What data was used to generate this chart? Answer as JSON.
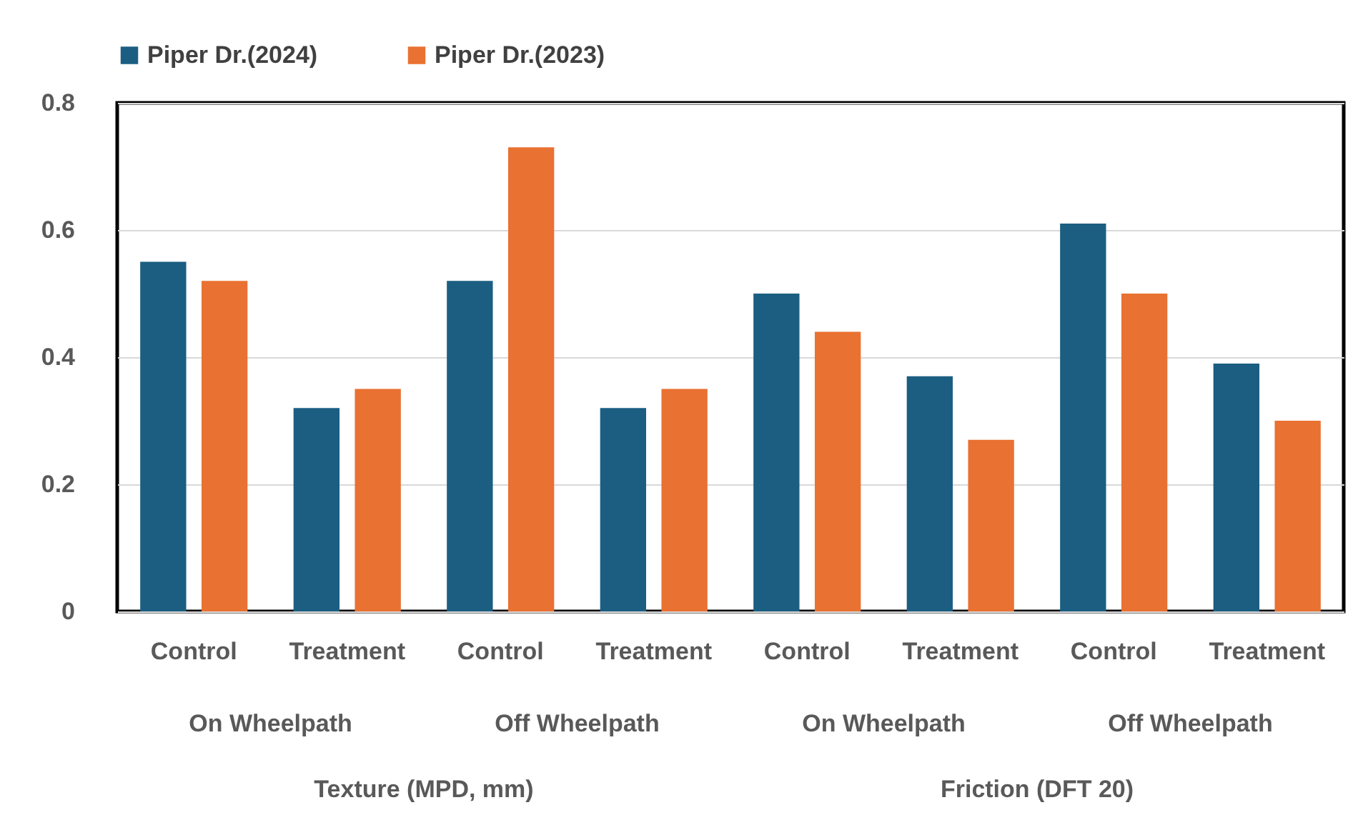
{
  "chart_data": {
    "type": "bar",
    "categories": [
      "Control",
      "Treatment",
      "Control",
      "Treatment",
      "Control",
      "Treatment",
      "Control",
      "Treatment"
    ],
    "series": [
      {
        "name": "Piper Dr.(2024)",
        "color": "#1b5e82",
        "values": [
          0.55,
          0.32,
          0.52,
          0.32,
          0.5,
          0.37,
          0.61,
          0.39
        ]
      },
      {
        "name": "Piper Dr.(2023)",
        "color": "#e97132",
        "values": [
          0.52,
          0.35,
          0.73,
          0.35,
          0.44,
          0.27,
          0.5,
          0.3
        ]
      }
    ],
    "annotations": [
      "On Wheelpath",
      "Off Wheelpath",
      "On Wheelpath",
      "Off Wheelpath",
      "Texture (MPD, mm)",
      "Friction (DFT 20)"
    ],
    "ylim": [
      0,
      0.8
    ],
    "yticks": [
      0,
      0.2,
      0.4,
      0.6,
      0.8
    ],
    "grid": "y",
    "legend": "top"
  }
}
